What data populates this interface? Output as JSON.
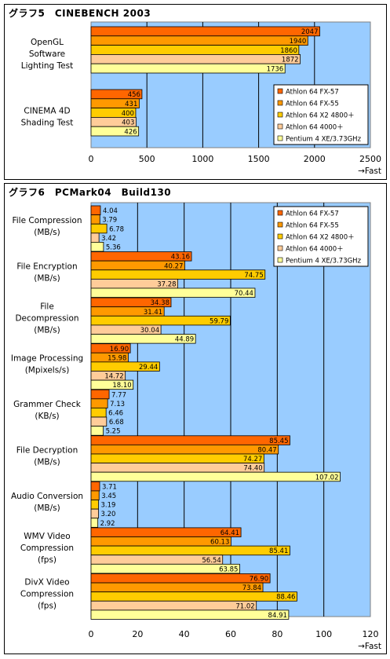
{
  "colors": {
    "plot_bg": "#99CCFF",
    "series": [
      "#FF6600",
      "#FF9900",
      "#FFCC00",
      "#FFCC99",
      "#FFFF99"
    ]
  },
  "chart_data": [
    {
      "type": "bar",
      "orientation": "horizontal",
      "title": "グラフ5　CINEBENCH 2003",
      "categories": [
        "OpenGL\nSoftware\nLighting Test",
        "CINEMA 4D\nShading Test"
      ],
      "series": [
        {
          "name": "Athlon 64 FX-57",
          "values": [
            2047,
            456
          ]
        },
        {
          "name": "Athlon 64 FX-55",
          "values": [
            1940,
            431
          ]
        },
        {
          "name": "Athlon 64 X2 4800＋",
          "values": [
            1860,
            400
          ]
        },
        {
          "name": "Athlon 64 4000＋",
          "values": [
            1872,
            403
          ]
        },
        {
          "name": "Pentium 4 XE/3.73GHz",
          "values": [
            1736,
            426
          ]
        }
      ],
      "xlim": [
        0,
        2500
      ],
      "xticks": [
        0,
        500,
        1000,
        1500,
        2000,
        2500
      ],
      "xlabel": "→Fast",
      "grid": true,
      "legend": "right"
    },
    {
      "type": "bar",
      "orientation": "horizontal",
      "title": "グラフ6　PCMark04　Build130",
      "categories": [
        "File Compression\n(MB/s)",
        "File Encryption\n(MB/s)",
        "File\nDecompression\n(MB/s)",
        "Image Processing\n(Mpixels/s)",
        "Grammer Check\n(KB/s)",
        "File Decryption\n(MB/s)",
        "Audio Conversion\n(MB/s)",
        "WMV Video\nCompression\n(fps)",
        "DivX Video\nCompression\n(fps)"
      ],
      "series": [
        {
          "name": "Athlon 64 FX-57",
          "values": [
            "4.04",
            "43.16",
            "34.38",
            "16.90",
            "7.77",
            "85.45",
            "3.71",
            "64.41",
            "76.90"
          ]
        },
        {
          "name": "Athlon 64 FX-55",
          "values": [
            "3.79",
            "40.27",
            "31.41",
            "15.98",
            "7.13",
            "80.47",
            "3.45",
            "60.13",
            "73.84"
          ]
        },
        {
          "name": "Athlon 64 X2 4800＋",
          "values": [
            "6.78",
            "74.75",
            "59.79",
            "29.44",
            "6.46",
            "74.27",
            "3.19",
            "85.41",
            "88.46"
          ]
        },
        {
          "name": "Athlon 64 4000＋",
          "values": [
            "3.42",
            "37.28",
            "30.04",
            "14.72",
            "6.68",
            "74.40",
            "3.20",
            "56.54",
            "71.02"
          ]
        },
        {
          "name": "Pentium 4 XE/3.73GHz",
          "values": [
            "5.36",
            "70.44",
            "44.89",
            "18.10",
            "5.25",
            "107.02",
            "2.92",
            "63.85",
            "84.91"
          ]
        }
      ],
      "xlim": [
        0,
        120
      ],
      "xticks": [
        0,
        20,
        40,
        60,
        80,
        100,
        120
      ],
      "xlabel": "→Fast",
      "grid": true,
      "legend": "top-right"
    }
  ]
}
